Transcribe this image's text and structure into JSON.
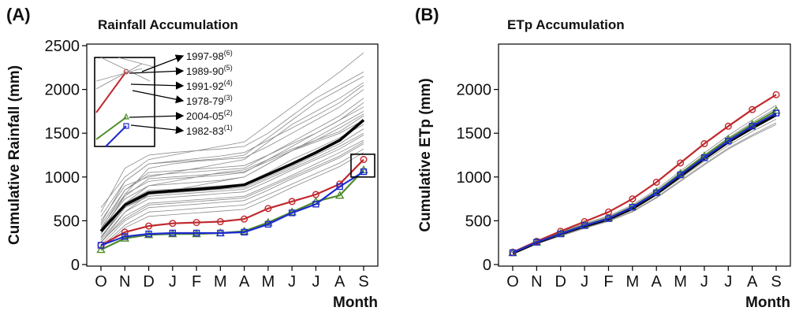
{
  "colors": {
    "background_runs": "#8a8a8a",
    "mean": "#000000",
    "red_series": "#c0282d",
    "green_series": "#4e8a2a",
    "blue_series": "#1f2ad0",
    "box": "#000000"
  },
  "chart_data": [
    {
      "id": "A",
      "panel_label": "(A)",
      "type": "line",
      "title": "Rainfall Accumulation",
      "xlabel": "Month",
      "ylabel": "Cumulative Rainfall (mm)",
      "categories": [
        "O",
        "N",
        "D",
        "J",
        "F",
        "M",
        "A",
        "M",
        "J",
        "J",
        "A",
        "S"
      ],
      "ylim": [
        0,
        2500
      ],
      "yticks": [
        0,
        500,
        1000,
        1500,
        2000,
        2500
      ],
      "grid": false,
      "legend_position": "top-left inset",
      "legend": [
        {
          "label": "1997-98",
          "sup": "(6)"
        },
        {
          "label": "1989-90",
          "sup": "(5)"
        },
        {
          "label": "1991-92",
          "sup": "(4)"
        },
        {
          "label": "1978-79",
          "sup": "(3)"
        },
        {
          "label": "2004-05",
          "sup": "(2)"
        },
        {
          "label": "1982-83",
          "sup": "(1)"
        }
      ],
      "mean": [
        380,
        680,
        820,
        840,
        860,
        880,
        910,
        1030,
        1150,
        1280,
        1420,
        1650
      ],
      "series": [
        {
          "name": "",
          "color": "red",
          "marker": "circle",
          "values": [
            220,
            370,
            440,
            470,
            480,
            490,
            520,
            640,
            720,
            800,
            920,
            1200
          ]
        },
        {
          "name": "",
          "color": "green",
          "marker": "triangle",
          "values": [
            170,
            300,
            340,
            350,
            350,
            360,
            380,
            480,
            600,
            720,
            790,
            1080
          ]
        },
        {
          "name": "",
          "color": "blue",
          "marker": "square",
          "values": [
            220,
            320,
            350,
            360,
            360,
            360,
            370,
            460,
            590,
            690,
            890,
            1060
          ]
        }
      ],
      "background": [
        [
          650,
          1000,
          1200,
          1250,
          1300,
          1350,
          1400,
          1600,
          1800,
          2000,
          2200,
          2420
        ],
        [
          600,
          1100,
          1250,
          1280,
          1300,
          1320,
          1350,
          1500,
          1700,
          1900,
          2050,
          2200
        ],
        [
          550,
          950,
          1150,
          1170,
          1190,
          1210,
          1250,
          1450,
          1650,
          1850,
          2000,
          2150
        ],
        [
          500,
          900,
          1000,
          1050,
          1100,
          1150,
          1200,
          1400,
          1600,
          1750,
          1900,
          2080
        ],
        [
          450,
          850,
          1020,
          1040,
          1060,
          1080,
          1100,
          1250,
          1400,
          1550,
          1700,
          1900
        ],
        [
          420,
          800,
          950,
          980,
          1000,
          1020,
          1050,
          1200,
          1350,
          1500,
          1650,
          1800
        ],
        [
          400,
          750,
          900,
          920,
          940,
          960,
          1000,
          1150,
          1300,
          1450,
          1600,
          1750
        ],
        [
          350,
          700,
          850,
          860,
          880,
          900,
          920,
          1050,
          1200,
          1320,
          1450,
          1600
        ],
        [
          300,
          650,
          800,
          820,
          840,
          860,
          880,
          1000,
          1120,
          1250,
          1380,
          1550
        ],
        [
          280,
          600,
          750,
          770,
          790,
          810,
          830,
          950,
          1080,
          1200,
          1320,
          1480
        ],
        [
          250,
          550,
          700,
          720,
          740,
          760,
          780,
          900,
          1020,
          1150,
          1280,
          1420
        ],
        [
          220,
          500,
          650,
          670,
          690,
          710,
          730,
          850,
          980,
          1100,
          1220,
          1380
        ],
        [
          200,
          450,
          600,
          620,
          640,
          660,
          680,
          800,
          920,
          1040,
          1160,
          1320
        ],
        [
          180,
          420,
          550,
          570,
          590,
          610,
          630,
          750,
          880,
          1000,
          1120,
          1280
        ],
        [
          300,
          700,
          900,
          950,
          1000,
          1050,
          1080,
          1200,
          1320,
          1420,
          1520,
          1700
        ],
        [
          350,
          800,
          1100,
          1150,
          1180,
          1200,
          1220,
          1350,
          1500,
          1650,
          1800,
          2000
        ],
        [
          250,
          600,
          800,
          850,
          900,
          950,
          1000,
          1150,
          1300,
          1400,
          1500,
          1650
        ],
        [
          400,
          850,
          1050,
          1070,
          1090,
          1110,
          1130,
          1250,
          1380,
          1500,
          1650,
          1850
        ],
        [
          320,
          650,
          780,
          800,
          820,
          840,
          860,
          980,
          1100,
          1220,
          1350,
          1500
        ],
        [
          260,
          520,
          680,
          700,
          720,
          740,
          760,
          880,
          1000,
          1120,
          1240,
          1400
        ],
        [
          470,
          950,
          1150,
          1180,
          1210,
          1240,
          1280,
          1420,
          1560,
          1700,
          1850,
          2050
        ],
        [
          380,
          780,
          980,
          1000,
          1020,
          1040,
          1060,
          1180,
          1300,
          1420,
          1560,
          1720
        ]
      ]
    },
    {
      "id": "B",
      "panel_label": "(B)",
      "type": "line",
      "title": "ETp Accumulation",
      "xlabel": "Month",
      "ylabel": "Cumulative ETp (mm)",
      "categories": [
        "O",
        "N",
        "D",
        "J",
        "F",
        "M",
        "A",
        "M",
        "J",
        "J",
        "A",
        "S"
      ],
      "ylim": [
        0,
        2500
      ],
      "yticks": [
        0,
        500,
        1000,
        1500,
        2000
      ],
      "grid": false,
      "mean": [
        130,
        250,
        350,
        440,
        520,
        640,
        810,
        1010,
        1210,
        1400,
        1560,
        1710
      ],
      "series": [
        {
          "name": "",
          "color": "red",
          "marker": "circle",
          "values": [
            140,
            265,
            380,
            490,
            600,
            750,
            940,
            1160,
            1380,
            1580,
            1770,
            1940
          ]
        },
        {
          "name": "",
          "color": "green",
          "marker": "triangle",
          "values": [
            135,
            255,
            355,
            450,
            530,
            660,
            830,
            1040,
            1240,
            1430,
            1600,
            1760
          ]
        },
        {
          "name": "",
          "color": "blue",
          "marker": "square",
          "values": [
            135,
            255,
            350,
            445,
            525,
            655,
            820,
            1025,
            1220,
            1410,
            1580,
            1730
          ]
        }
      ],
      "background": [
        [
          120,
          240,
          330,
          420,
          500,
          610,
          770,
          960,
          1150,
          1330,
          1480,
          1620
        ],
        [
          125,
          245,
          340,
          430,
          510,
          625,
          790,
          985,
          1180,
          1360,
          1520,
          1660
        ],
        [
          128,
          250,
          345,
          438,
          518,
          635,
          800,
          1000,
          1200,
          1385,
          1545,
          1695
        ],
        [
          132,
          252,
          352,
          445,
          525,
          645,
          815,
          1015,
          1215,
          1405,
          1570,
          1725
        ],
        [
          135,
          258,
          358,
          452,
          535,
          655,
          828,
          1030,
          1232,
          1425,
          1595,
          1755
        ],
        [
          138,
          262,
          365,
          460,
          545,
          668,
          842,
          1048,
          1252,
          1448,
          1622,
          1785
        ],
        [
          142,
          266,
          372,
          470,
          556,
          682,
          858,
          1068,
          1275,
          1475,
          1652,
          1820
        ],
        [
          118,
          236,
          325,
          414,
          494,
          602,
          760,
          948,
          1138,
          1318,
          1466,
          1600
        ],
        [
          130,
          248,
          348,
          442,
          522,
          640,
          808,
          1008,
          1208,
          1395,
          1560,
          1710
        ]
      ]
    }
  ]
}
